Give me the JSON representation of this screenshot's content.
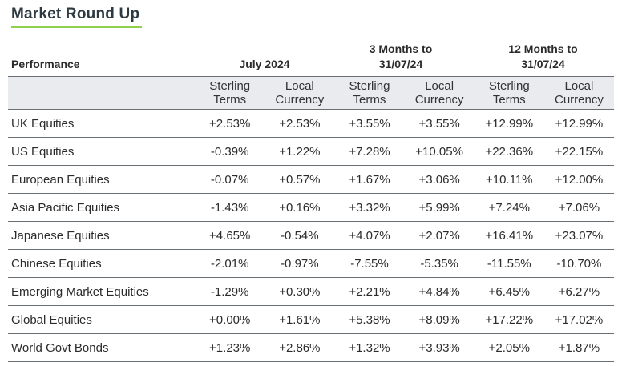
{
  "title": "Market Round Up",
  "header": {
    "performance": "Performance",
    "july": "July 2024",
    "three_months_line1": "3 Months to",
    "three_months_line2": "31/07/24",
    "twelve_months_line1": "12 Months to",
    "twelve_months_line2": "31/07/24"
  },
  "subheaders": {
    "sterling_line1": "Sterling",
    "sterling_line2": "Terms",
    "local_line1": "Local",
    "local_line2": "Currency"
  },
  "rows": [
    {
      "label": "UK Equities",
      "values": [
        "+2.53%",
        "+2.53%",
        "+3.55%",
        "+3.55%",
        "+12.99%",
        "+12.99%"
      ]
    },
    {
      "label": "US Equities",
      "values": [
        "-0.39%",
        "+1.22%",
        "+7.28%",
        "+10.05%",
        "+22.36%",
        "+22.15%"
      ]
    },
    {
      "label": "European Equities",
      "values": [
        "-0.07%",
        "+0.57%",
        "+1.67%",
        "+3.06%",
        "+10.11%",
        "+12.00%"
      ]
    },
    {
      "label": "Asia Pacific Equities",
      "values": [
        "-1.43%",
        "+0.16%",
        "+3.32%",
        "+5.99%",
        "+7.24%",
        "+7.06%"
      ]
    },
    {
      "label": "Japanese Equities",
      "values": [
        "+4.65%",
        "-0.54%",
        "+4.07%",
        "+2.07%",
        "+16.41%",
        "+23.07%"
      ]
    },
    {
      "label": "Chinese Equities",
      "values": [
        "-2.01%",
        "-0.97%",
        "-7.55%",
        "-5.35%",
        "-11.55%",
        "-10.70%"
      ]
    },
    {
      "label": "Emerging Market Equities",
      "values": [
        "-1.29%",
        "+0.30%",
        "+2.21%",
        "+4.84%",
        "+6.45%",
        "+6.27%"
      ]
    },
    {
      "label": "Global Equities",
      "values": [
        "+0.00%",
        "+1.61%",
        "+5.38%",
        "+8.09%",
        "+17.22%",
        "+17.02%"
      ]
    },
    {
      "label": "World Govt Bonds",
      "values": [
        "+1.23%",
        "+2.86%",
        "+1.32%",
        "+3.93%",
        "+2.05%",
        "+1.87%"
      ]
    }
  ]
}
